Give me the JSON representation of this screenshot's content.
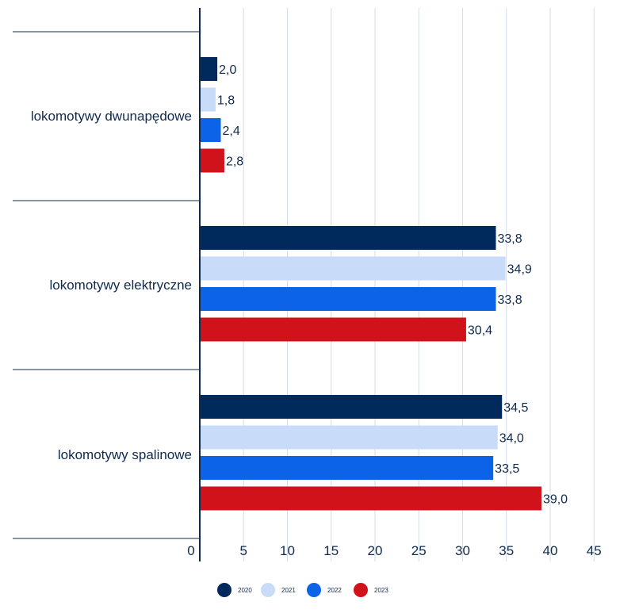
{
  "chart_data": {
    "type": "bar",
    "orientation": "horizontal",
    "categories": [
      "lokomotywy dwunapędowe",
      "lokomotywy elektryczne",
      "lokomotywy spalinowe"
    ],
    "series": [
      {
        "name": "2020",
        "color": "#002a5c",
        "values": [
          2.0,
          33.8,
          34.5
        ],
        "labels": [
          "2,0",
          "33,8",
          "34,5"
        ]
      },
      {
        "name": "2021",
        "color": "#c8dbf8",
        "values": [
          1.8,
          34.9,
          34.0
        ],
        "labels": [
          "1,8",
          "34,9",
          "34,0"
        ]
      },
      {
        "name": "2022",
        "color": "#0c63e7",
        "values": [
          2.4,
          33.8,
          33.5
        ],
        "labels": [
          "2,4",
          "33,8",
          "33,5"
        ]
      },
      {
        "name": "2023",
        "color": "#d0121b",
        "values": [
          2.8,
          30.4,
          39.0
        ],
        "labels": [
          "2,8",
          "30,4",
          "39,0"
        ]
      }
    ],
    "xlim": [
      0,
      45
    ],
    "xticks": [
      "0",
      "5",
      "10",
      "15",
      "20",
      "25",
      "30",
      "35",
      "40",
      "45"
    ],
    "grid": true,
    "legend_position": "bottom"
  }
}
